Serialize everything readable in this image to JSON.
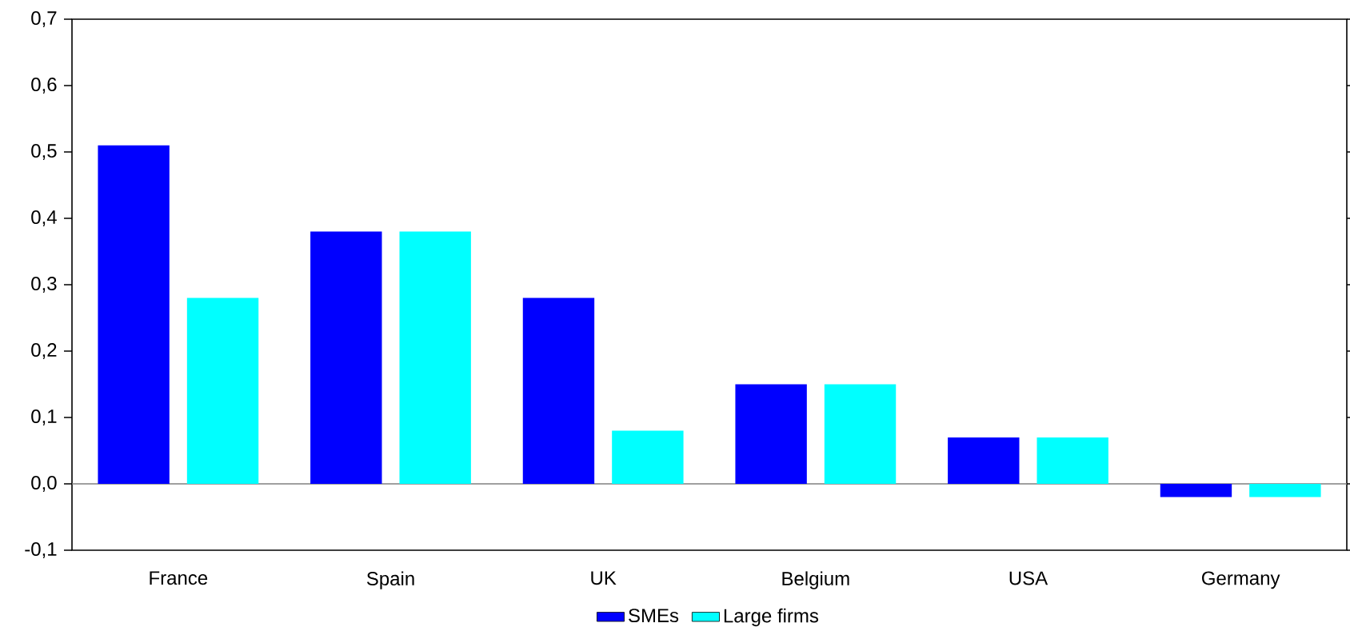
{
  "chart_data": {
    "type": "bar",
    "categories": [
      "France",
      "Spain",
      "UK",
      "Belgium",
      "USA",
      "Germany"
    ],
    "series": [
      {
        "name": "SMEs",
        "color": "#0000ff",
        "values": [
          0.51,
          0.38,
          0.28,
          0.15,
          0.07,
          -0.02
        ]
      },
      {
        "name": "Large firms",
        "color": "#00ffff",
        "values": [
          0.28,
          0.38,
          0.08,
          0.15,
          0.07,
          -0.02
        ]
      }
    ],
    "ylim": [
      -0.1,
      0.7
    ],
    "yticks": [
      {
        "value": -0.1,
        "label": "-0,1"
      },
      {
        "value": 0,
        "label": "0,0"
      },
      {
        "value": 0.1,
        "label": "0,1"
      },
      {
        "value": 0.2,
        "label": "0,2"
      },
      {
        "value": 0.3,
        "label": "0,3"
      },
      {
        "value": 0.4,
        "label": "0,4"
      },
      {
        "value": 0.5,
        "label": "0,5"
      },
      {
        "value": 0.6,
        "label": "0,6"
      },
      {
        "value": 0.7,
        "label": "0,7"
      }
    ],
    "legend": "bottom"
  }
}
